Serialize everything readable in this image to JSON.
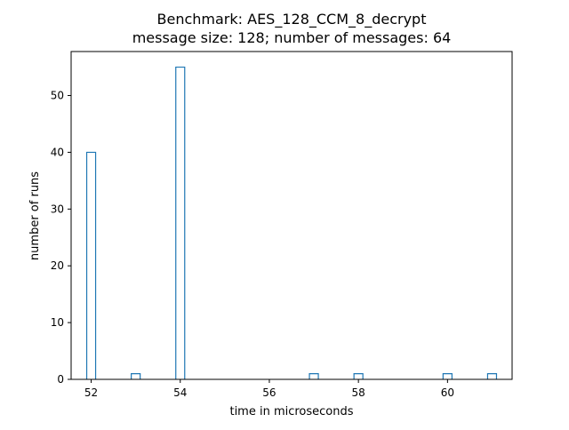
{
  "chart_data": {
    "type": "bar",
    "title": "Benchmark: AES_128_CCM_8_decrypt",
    "subtitle": "message size: 128; number of messages: 64",
    "xlabel": "time in microseconds",
    "ylabel": "number of runs",
    "xlim": [
      51.55,
      61.45
    ],
    "ylim": [
      0,
      57.75
    ],
    "xticks": [
      52,
      54,
      56,
      58,
      60
    ],
    "yticks": [
      0,
      10,
      20,
      30,
      40,
      50
    ],
    "bin_width": 0.2,
    "bars": [
      {
        "x": 52,
        "count": 40
      },
      {
        "x": 53,
        "count": 1
      },
      {
        "x": 54,
        "count": 55
      },
      {
        "x": 57,
        "count": 1
      },
      {
        "x": 58,
        "count": 1
      },
      {
        "x": 60,
        "count": 1
      },
      {
        "x": 61,
        "count": 1
      }
    ],
    "grid": false,
    "colors": {
      "bar_edge": "#1f77b4",
      "bar_fill": "#ffffff",
      "axis": "#000000"
    }
  }
}
